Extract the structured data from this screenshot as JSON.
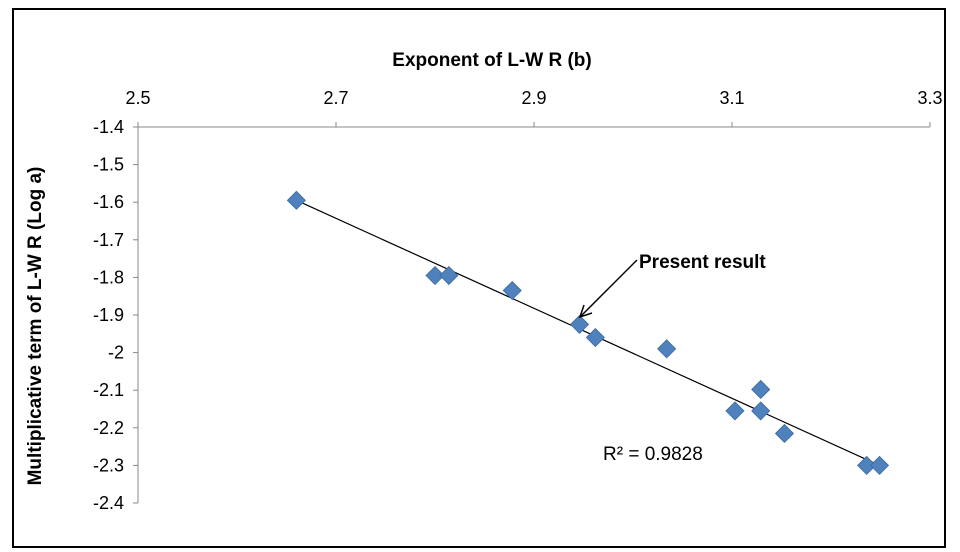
{
  "chart_data": {
    "type": "scatter",
    "xlabel": "Exponent of L-W R (b)",
    "ylabel": "Multiplicative term of L-W R (Log a)",
    "xlim": [
      2.5,
      3.3
    ],
    "ylim": [
      -2.4,
      -1.4
    ],
    "x_ticks": [
      "2.5",
      "2.7",
      "2.9",
      "3.1",
      "3.3"
    ],
    "y_ticks": [
      "-1.4",
      "-1.5",
      "-1.6",
      "-1.7",
      "-1.8",
      "-1.9",
      "-2",
      "-2.1",
      "-2.2",
      "-2.3",
      "-2.4"
    ],
    "x_axis_position": "top",
    "grid": false,
    "marker_color": "#4f81bd",
    "series": [
      {
        "points": [
          {
            "x": 2.66,
            "y": -1.595
          },
          {
            "x": 2.8,
            "y": -1.795
          },
          {
            "x": 2.814,
            "y": -1.795
          },
          {
            "x": 2.878,
            "y": -1.835
          },
          {
            "x": 2.946,
            "y": -1.925
          },
          {
            "x": 2.962,
            "y": -1.96
          },
          {
            "x": 3.034,
            "y": -1.99
          },
          {
            "x": 3.103,
            "y": -2.155
          },
          {
            "x": 3.129,
            "y": -2.098
          },
          {
            "x": 3.129,
            "y": -2.155
          },
          {
            "x": 3.153,
            "y": -2.215
          },
          {
            "x": 3.236,
            "y": -2.3
          },
          {
            "x": 3.249,
            "y": -2.3
          }
        ]
      }
    ],
    "trendline": {
      "x1": 2.66,
      "y1": -1.595,
      "x2": 3.249,
      "y2": -2.3,
      "color": "#000000"
    },
    "annotations": {
      "present_result": "Present result",
      "r2_label": "R² = 0.9828"
    }
  }
}
